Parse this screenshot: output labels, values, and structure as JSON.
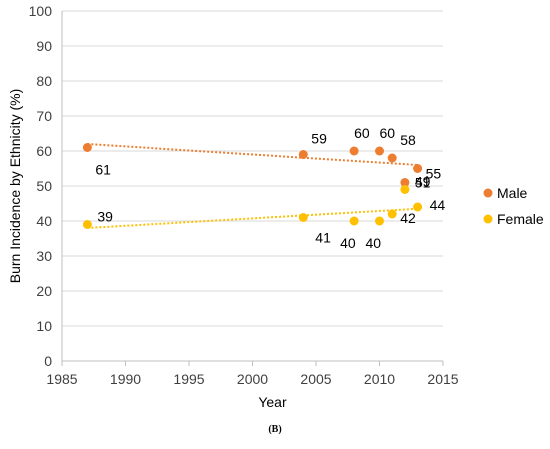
{
  "panel_label": "(B)",
  "chart_data": {
    "type": "scatter",
    "title": "",
    "xlabel": "Year",
    "ylabel": "Burn Incidence by Ethnicity (%)",
    "xlim": [
      1985,
      2015
    ],
    "ylim": [
      0,
      100
    ],
    "xticks": [
      1985,
      1990,
      1995,
      2000,
      2005,
      2010,
      2015
    ],
    "yticks": [
      0,
      10,
      20,
      30,
      40,
      50,
      60,
      70,
      80,
      90,
      100
    ],
    "grid": "horizontal",
    "legend_position": "right",
    "trendline": "linear (dotted)",
    "series": [
      {
        "name": "Male",
        "color": "#ED7D31",
        "x": [
          1987,
          2004,
          2008,
          2010,
          2011,
          2012,
          2013
        ],
        "y": [
          61,
          59,
          60,
          60,
          58,
          51,
          55
        ],
        "trend": [
          62,
          56
        ]
      },
      {
        "name": "Female",
        "color": "#FFC000",
        "x": [
          1987,
          2004,
          2008,
          2010,
          2011,
          2012,
          2013
        ],
        "y": [
          39,
          41,
          40,
          40,
          42,
          49,
          44
        ],
        "trend": [
          38,
          43.5
        ]
      }
    ]
  }
}
